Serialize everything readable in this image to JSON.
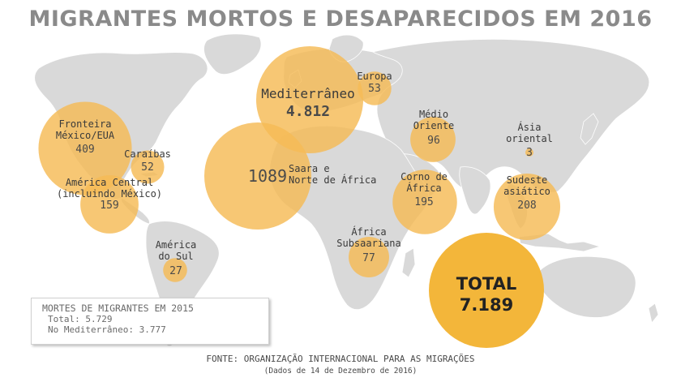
{
  "title": "MIGRANTES MORTOS E DESAPARECIDOS EM 2016",
  "colors": {
    "bubble": "#f5bb55",
    "total_bubble": "#f3b63a",
    "land": "#d9d9d9",
    "title": "#8a8a8a"
  },
  "regions": [
    {
      "id": "mediterraneo",
      "label": "Mediterrâneo",
      "value": "4.812"
    },
    {
      "id": "europa",
      "label": "Europa",
      "value": "53"
    },
    {
      "id": "medio-oriente",
      "label": "Médio\nOriente",
      "value": "96"
    },
    {
      "id": "asia-oriental",
      "label": "Ásia\noriental",
      "value": "3"
    },
    {
      "id": "fronteira-mexico-eua",
      "label": "Fronteira\nMéxico/EUA",
      "value": "409"
    },
    {
      "id": "caraibas",
      "label": "Caraíbas",
      "value": "52"
    },
    {
      "id": "america-central",
      "label": "América Central\n(incluindo México)",
      "value": "159"
    },
    {
      "id": "saara-norte-africa",
      "label": "Saara e\nNorte de África",
      "value": "1089"
    },
    {
      "id": "corno-africa",
      "label": "Corno de\nÁfrica",
      "value": "195"
    },
    {
      "id": "sudeste-asiatico",
      "label": "Sudeste\nasiático",
      "value": "208"
    },
    {
      "id": "africa-subsaariana",
      "label": "África\nSubsaariana",
      "value": "77"
    },
    {
      "id": "america-do-sul",
      "label": "América\ndo Sul",
      "value": "27"
    }
  ],
  "total": {
    "label": "TOTAL",
    "value": "7.189"
  },
  "inset": {
    "heading": "MORTES DE MIGRANTES EM 2015",
    "total": "Total: 5.729",
    "mediterraneo": "No Mediterrâneo: 3.777"
  },
  "source": "FONTE: ORGANIZAÇÃO INTERNACIONAL PARA AS MIGRAÇÕES",
  "source_date": "(Dados de 14 de Dezembro de 2016)"
}
